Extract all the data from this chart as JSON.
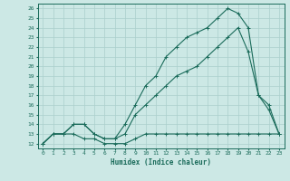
{
  "xlabel": "Humidex (Indice chaleur)",
  "bg_color": "#cce8e5",
  "grid_color": "#aacfcc",
  "line_color": "#1a6b5a",
  "xlim": [
    -0.5,
    23.5
  ],
  "ylim": [
    11.5,
    26.5
  ],
  "yticks": [
    12,
    13,
    14,
    15,
    16,
    17,
    18,
    19,
    20,
    21,
    22,
    23,
    24,
    25,
    26
  ],
  "xticks": [
    0,
    1,
    2,
    3,
    4,
    5,
    6,
    7,
    8,
    9,
    10,
    11,
    12,
    13,
    14,
    15,
    16,
    17,
    18,
    19,
    20,
    21,
    22,
    23
  ],
  "line1_x": [
    0,
    1,
    2,
    3,
    4,
    5,
    6,
    7,
    8,
    9,
    10,
    11,
    12,
    13,
    14,
    15,
    16,
    17,
    18,
    19,
    20,
    21,
    22,
    23
  ],
  "line1_y": [
    12,
    13,
    13,
    13,
    12.5,
    12.5,
    12,
    12,
    12,
    12.5,
    13,
    13,
    13,
    13,
    13,
    13,
    13,
    13,
    13,
    13,
    13,
    13,
    13,
    13
  ],
  "line2_x": [
    0,
    1,
    2,
    3,
    4,
    5,
    6,
    7,
    8,
    9,
    10,
    11,
    12,
    13,
    14,
    15,
    16,
    17,
    18,
    19,
    20,
    21,
    22,
    23
  ],
  "line2_y": [
    12,
    13,
    13,
    14,
    14,
    13,
    12.5,
    12.5,
    13,
    15,
    16,
    17,
    18,
    19,
    19.5,
    20,
    21,
    22,
    23,
    24,
    21.5,
    17,
    15.5,
    13
  ],
  "line3_x": [
    0,
    1,
    2,
    3,
    4,
    5,
    6,
    7,
    8,
    9,
    10,
    11,
    12,
    13,
    14,
    15,
    16,
    17,
    18,
    19,
    20,
    21,
    22,
    23
  ],
  "line3_y": [
    12,
    13,
    13,
    14,
    14,
    13,
    12.5,
    12.5,
    14,
    16,
    18,
    19,
    21,
    22,
    23,
    23.5,
    24,
    25,
    26,
    25.5,
    24,
    17,
    16,
    13
  ]
}
